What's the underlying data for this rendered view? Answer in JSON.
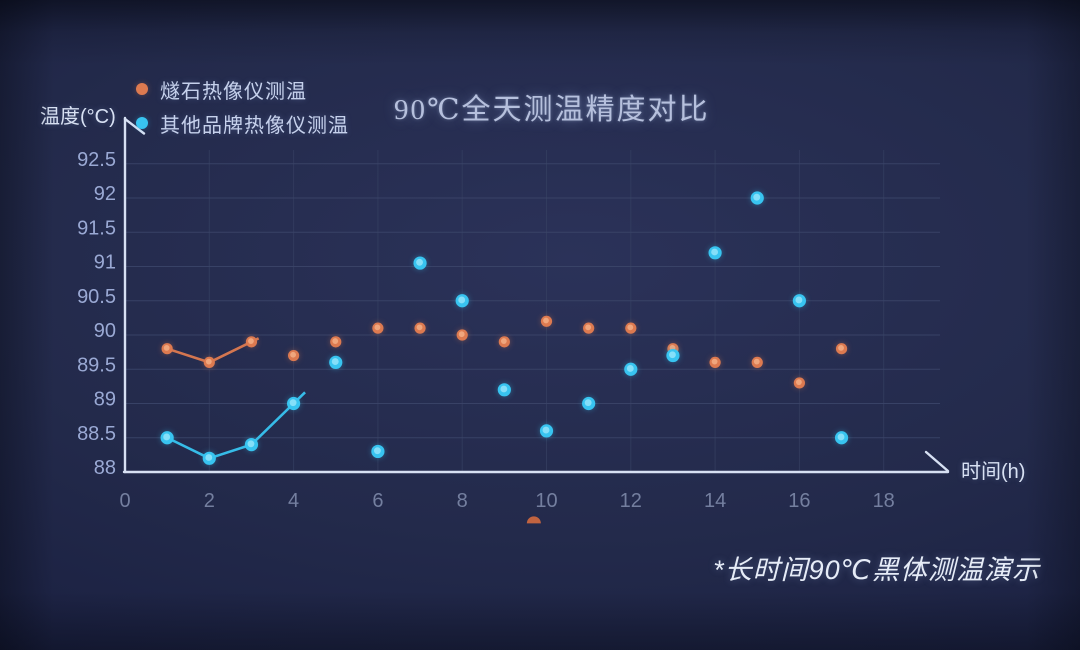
{
  "footnote": "*长时间90℃黑体测温演示",
  "chart_data": {
    "type": "scatter",
    "title": "90℃全天测温精度对比",
    "xlabel": "时间(h)",
    "ylabel": "温度(°C)",
    "x": [
      1,
      2,
      3,
      4,
      5,
      6,
      7,
      8,
      9,
      10,
      11,
      12,
      13,
      14,
      15,
      16,
      17
    ],
    "x_ticks": [
      0,
      2,
      4,
      6,
      8,
      10,
      12,
      14,
      16,
      18
    ],
    "y_ticks": [
      88,
      88.5,
      89,
      89.5,
      90,
      90.5,
      91,
      91.5,
      92,
      92.5
    ],
    "xlim": [
      0,
      19.5
    ],
    "ylim": [
      88,
      92.75
    ],
    "grid": true,
    "legend_position": "top-left",
    "series": [
      {
        "name": "燧石热像仪测温",
        "color": "#dd7a50",
        "marker_center": "#f3ae85",
        "line_connected_through_point": 3,
        "values": [
          89.8,
          89.6,
          89.9,
          89.7,
          89.9,
          90.1,
          90.1,
          90.0,
          89.9,
          90.2,
          90.1,
          90.1,
          89.8,
          89.6,
          89.6,
          89.3,
          89.8
        ]
      },
      {
        "name": "其他品牌热像仪测温",
        "color": "#38c4f0",
        "marker_center": "#93e4fa",
        "line_connected_through_point": 4,
        "values": [
          88.5,
          88.2,
          88.4,
          89.0,
          89.6,
          88.3,
          91.05,
          90.5,
          89.2,
          88.6,
          89.0,
          89.5,
          89.7,
          91.2,
          92.0,
          90.5,
          88.5
        ]
      }
    ],
    "clipped_stray_point": {
      "x": 9.7,
      "y": 87.25,
      "color": "#d3693f"
    }
  }
}
